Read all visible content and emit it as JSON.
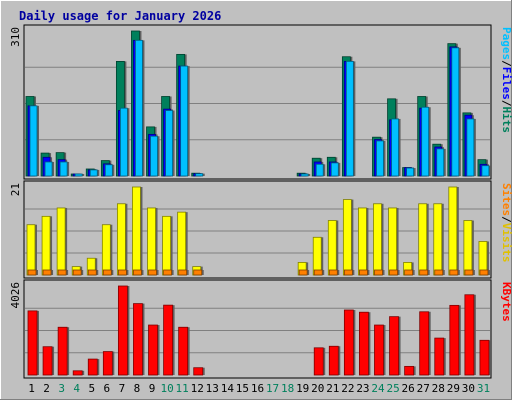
{
  "chart_data": {
    "type": "bar",
    "title": "Daily usage for January 2026",
    "days": [
      "1",
      "2",
      "3",
      "4",
      "5",
      "6",
      "7",
      "8",
      "9",
      "10",
      "11",
      "12",
      "13",
      "14",
      "15",
      "16",
      "17",
      "18",
      "19",
      "20",
      "21",
      "22",
      "23",
      "24",
      "25",
      "26",
      "27",
      "28",
      "29",
      "30",
      "31"
    ],
    "weekend_days": [
      "3",
      "4",
      "10",
      "11",
      "17",
      "18",
      "24",
      "25",
      "31"
    ],
    "panels": [
      {
        "id": "hits",
        "max_label": "310",
        "ylim": [
          0,
          310
        ],
        "legend": [
          {
            "text": "Hits",
            "color": "#00805c"
          },
          {
            "text": "/",
            "color": "#000000"
          },
          {
            "text": "Files",
            "color": "#0000ff"
          },
          {
            "text": "/",
            "color": "#000000"
          },
          {
            "text": "Pages",
            "color": "#00c0ff"
          }
        ],
        "series": [
          {
            "name": "Hits",
            "color": "#00805c",
            "values": [
              170,
              49,
              50,
              3,
              15,
              33,
              245,
              310,
              105,
              170,
              260,
              6,
              0,
              0,
              0,
              0,
              0,
              0,
              6,
              38,
              40,
              255,
              0,
              83,
              165,
              18,
              170,
              68,
              283,
              135,
              35
            ]
          },
          {
            "name": "Files",
            "color": "#0000ff",
            "values": [
              150,
              40,
              35,
              2,
              13,
              26,
              140,
              290,
              89,
              143,
              235,
              5,
              0,
              0,
              0,
              0,
              0,
              0,
              4,
              30,
              30,
              245,
              0,
              78,
              120,
              18,
              145,
              62,
              276,
              130,
              25
            ]
          },
          {
            "name": "Pages",
            "color": "#00c0ff",
            "values": [
              150,
              30,
              30,
              2,
              13,
              24,
              145,
              290,
              85,
              140,
              235,
              5,
              0,
              0,
              0,
              0,
              0,
              0,
              4,
              25,
              28,
              245,
              0,
              75,
              122,
              17,
              147,
              58,
              274,
              122,
              22
            ]
          }
        ]
      },
      {
        "id": "visits",
        "max_label": "21",
        "ylim": [
          0,
          21
        ],
        "legend": [
          {
            "text": "Visits",
            "color": "#e0c000"
          },
          {
            "text": "/",
            "color": "#000000"
          },
          {
            "text": "Sites",
            "color": "#ff8000"
          }
        ],
        "series": [
          {
            "name": "Visits",
            "color": "#ffff00",
            "values": [
              12,
              14,
              16,
              2,
              4,
              12,
              17,
              21,
              16,
              14,
              15,
              2,
              0,
              0,
              0,
              0,
              0,
              0,
              3,
              9,
              13,
              18,
              16,
              17,
              16,
              3,
              17,
              17,
              21,
              13,
              8
            ]
          },
          {
            "name": "Sites",
            "color": "#ff8000",
            "values": [
              1,
              1,
              1,
              1,
              1,
              1,
              1,
              1,
              1,
              1,
              1,
              1,
              0,
              0,
              0,
              0,
              0,
              0,
              1,
              1,
              1,
              1,
              1,
              1,
              1,
              1,
              1,
              1,
              1,
              1,
              1
            ]
          }
        ]
      },
      {
        "id": "kbytes",
        "max_label": "4026",
        "ylim": [
          0,
          4026
        ],
        "legend": [
          {
            "text": "KBytes",
            "color": "#ff0000"
          }
        ],
        "series": [
          {
            "name": "KBytes",
            "color": "#ff0000",
            "values": [
              2900,
              1280,
              2160,
              190,
              720,
              1060,
              4026,
              3230,
              2260,
              3160,
              2160,
              330,
              0,
              0,
              0,
              0,
              0,
              0,
              0,
              1230,
              1300,
              2940,
              2840,
              2260,
              2640,
              390,
              2860,
              1670,
              3150,
              3630,
              1570
            ]
          }
        ]
      }
    ]
  }
}
